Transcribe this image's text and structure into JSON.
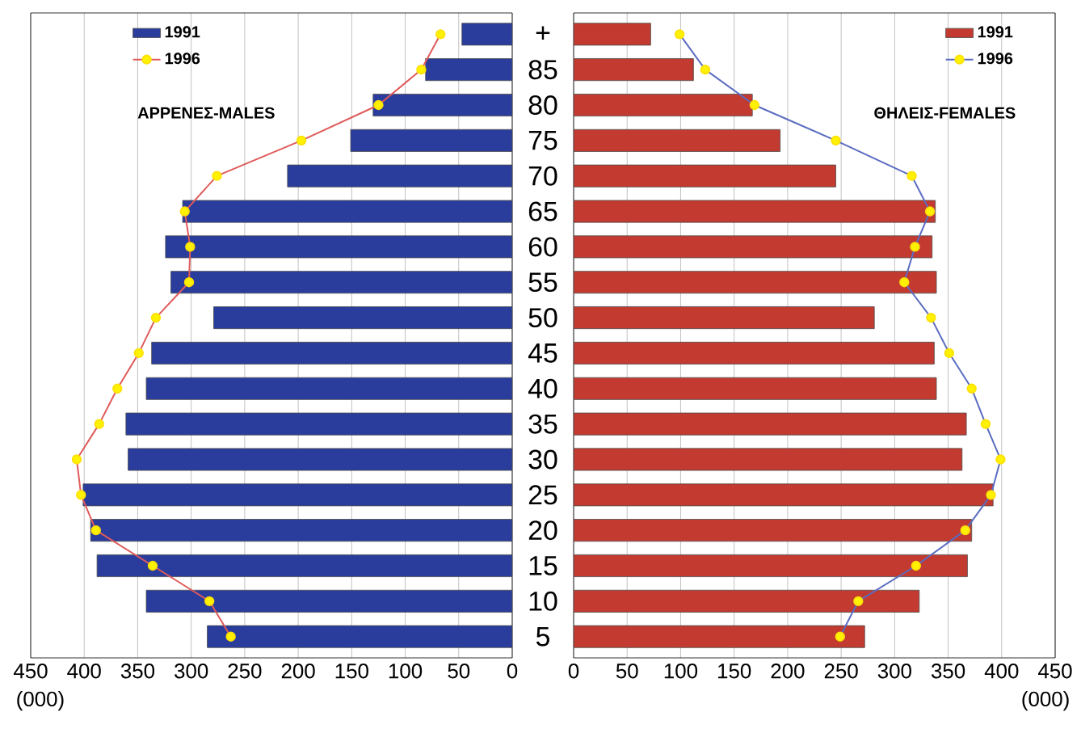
{
  "chart_data": [
    {
      "type": "bar",
      "orientation": "horizontal",
      "categories": [
        "+",
        "85",
        "80",
        "75",
        "70",
        "65",
        "60",
        "55",
        "50",
        "45",
        "40",
        "35",
        "30",
        "25",
        "20",
        "15",
        "10",
        "5"
      ],
      "series": [
        {
          "name": "1991",
          "color": "#2a3d9c",
          "values": [
            47,
            81,
            130,
            151,
            210,
            308,
            324,
            319,
            279,
            337,
            342,
            361,
            359,
            401,
            394,
            388,
            342,
            285
          ]
        },
        {
          "name": "1996",
          "type": "line",
          "color": "#e05a5a",
          "values": [
            67,
            85,
            125,
            197,
            276,
            306,
            301,
            302,
            333,
            349,
            369,
            386,
            407,
            403,
            389,
            336,
            283,
            263
          ]
        }
      ],
      "xlim": [
        450,
        0
      ],
      "xticks": [
        450,
        400,
        350,
        300,
        250,
        200,
        150,
        100,
        50,
        0
      ],
      "xlabel": "(000)",
      "grid": "x",
      "legend": "top left",
      "marker": "circle",
      "line_style": "solid",
      "annotations": [
        "ΑΡΡΕΝΕΣ-MALES"
      ]
    },
    {
      "type": "bar",
      "orientation": "horizontal",
      "categories": [
        null,
        null,
        null,
        null,
        null,
        null,
        null,
        null,
        null,
        null,
        null,
        null,
        null,
        null,
        null,
        null,
        null,
        null
      ],
      "series": [
        {
          "name": "1991",
          "color": "#c23a30",
          "values": [
            72,
            112,
            167,
            193,
            245,
            338,
            335,
            339,
            281,
            337,
            339,
            367,
            363,
            392,
            372,
            368,
            323,
            272
          ]
        },
        {
          "name": "1996",
          "type": "line",
          "color": "#5a6cc0",
          "values": [
            99,
            123,
            169,
            245,
            316,
            333,
            319,
            309,
            334,
            351,
            372,
            385,
            399,
            390,
            366,
            320,
            266,
            249
          ]
        }
      ],
      "xlim": [
        0,
        450
      ],
      "xticks": [
        0,
        50,
        100,
        150,
        200,
        250,
        300,
        350,
        400,
        450
      ],
      "xlabel": "(000)",
      "grid": "x",
      "legend": "top right",
      "marker": "circle",
      "line_style": "solid",
      "tick_labels": "x",
      "annotations": [
        "ΘΗΛΕΙΣ-FEMALES"
      ]
    }
  ]
}
